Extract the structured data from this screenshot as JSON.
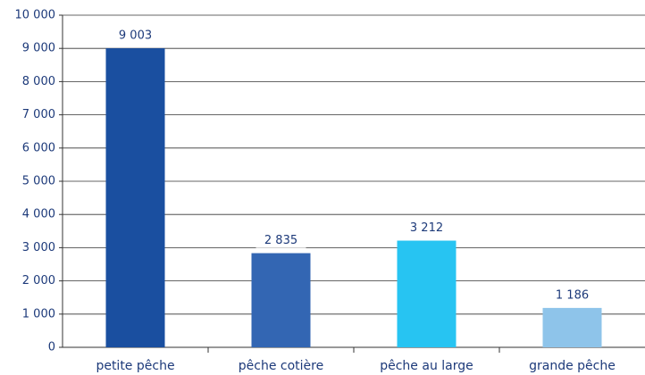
{
  "chart_data": {
    "type": "bar",
    "categories": [
      "petite pêche",
      "pêche cotière",
      "pêche au large",
      "grande pêche"
    ],
    "values": [
      9003,
      2835,
      3212,
      1186
    ],
    "value_labels": [
      "9 003",
      "2 835",
      "3 212",
      "1 186"
    ],
    "colors": [
      "#1a4fa0",
      "#3366b3",
      "#27c4f2",
      "#8ec4ea"
    ],
    "ylim": [
      0,
      10000
    ],
    "yticks": [
      0,
      {
        "value": 1000,
        "label": "1 000"
      },
      {
        "value": 2000,
        "label": "2 000"
      },
      {
        "value": 3000,
        "label": "3 000"
      },
      {
        "value": 4000,
        "label": "4 000"
      },
      {
        "value": 5000,
        "label": "5 000"
      },
      {
        "value": 6000,
        "label": "6 000"
      },
      {
        "value": 7000,
        "label": "7 000"
      },
      {
        "value": 8000,
        "label": "8 000"
      },
      {
        "value": 9000,
        "label": "9 000"
      },
      {
        "value": 10000,
        "label": "10 000"
      }
    ],
    "grid": true
  }
}
